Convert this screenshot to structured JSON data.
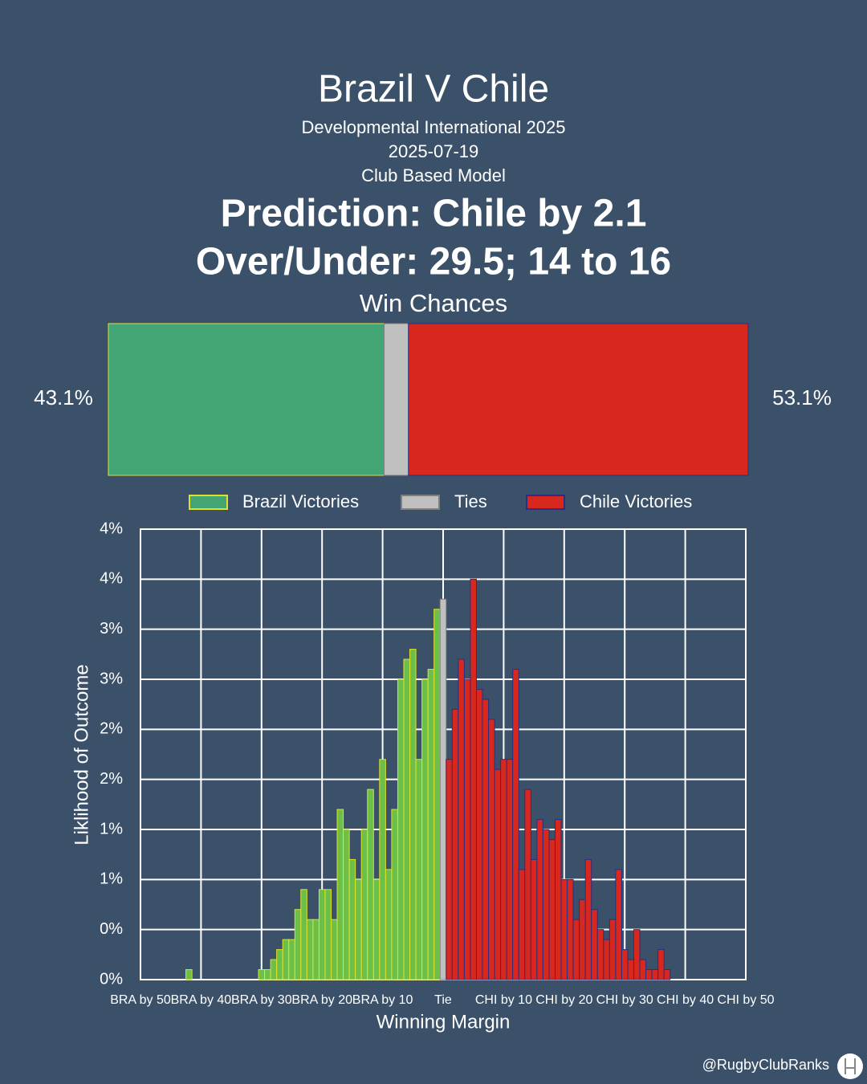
{
  "header": {
    "title": "Brazil V Chile",
    "competition": "Developmental International 2025",
    "date": "2025-07-19",
    "model": "Club Based Model",
    "prediction": "Prediction: Chile by 2.1",
    "over_under": "Over/Under: 29.5; 14 to 16"
  },
  "footer": {
    "handle": "@RugbyClubRanks"
  },
  "chart_data": [
    {
      "type": "stacked-bar",
      "title": "Win Chances",
      "series": [
        {
          "color": "#44a574",
          "edgecolor": "#e0e02a",
          "values": [
            43.1
          ],
          "value_labels": [
            "43.1%"
          ]
        },
        {
          "color": "#c0c0c0",
          "edgecolor": "#808080",
          "values": [
            3.8
          ]
        },
        {
          "color": "#d8281e",
          "edgecolor": "#2a2f80",
          "values": [
            53.1
          ],
          "value_labels": [
            "53.1%"
          ]
        }
      ]
    },
    {
      "type": "histogram",
      "xlabel": "Winning Margin",
      "ylabel": "Liklihood of Outcome",
      "grid": true,
      "xlim": [
        -50,
        50
      ],
      "xticks": [
        {
          "value": -50,
          "label": "BRA by 50"
        },
        {
          "value": -40,
          "label": "BRA by 40"
        },
        {
          "value": -30,
          "label": "BRA by 30"
        },
        {
          "value": -20,
          "label": "BRA by 20"
        },
        {
          "value": -10,
          "label": "BRA by 10"
        },
        {
          "value": 0,
          "label": "Tie"
        },
        {
          "value": 10,
          "label": "CHI by 10"
        },
        {
          "value": 20,
          "label": "CHI by 20"
        },
        {
          "value": 30,
          "label": "CHI by 30"
        },
        {
          "value": 40,
          "label": "CHI by 40"
        },
        {
          "value": 50,
          "label": "CHI by 50"
        }
      ],
      "ylim": [
        0,
        4.5
      ],
      "yticks": [
        {
          "value": 0,
          "label": "0%"
        },
        {
          "value": 0.5,
          "label": "0%"
        },
        {
          "value": 1,
          "label": "1%"
        },
        {
          "value": 1.5,
          "label": "1%"
        },
        {
          "value": 2,
          "label": "2%"
        },
        {
          "value": 2.5,
          "label": "2%"
        },
        {
          "value": 3,
          "label": "3%"
        },
        {
          "value": 3.5,
          "label": "3%"
        },
        {
          "value": 4,
          "label": "4%"
        },
        {
          "value": 4.5,
          "label": "4%"
        }
      ],
      "series": [
        {
          "name": "Brazil Victories",
          "color": "#6cc04a",
          "edgecolor": "#e0e02a",
          "legend_color": "#44a574",
          "x": [
            -42,
            -30,
            -29,
            -28,
            -27,
            -26,
            -25,
            -24,
            -23,
            -22,
            -21,
            -20,
            -19,
            -18,
            -17,
            -16,
            -15,
            -14,
            -13,
            -12,
            -11,
            -10,
            -9,
            -8,
            -7,
            -6,
            -5,
            -4,
            -3,
            -2,
            -1
          ],
          "values": [
            0.1,
            0.1,
            0.1,
            0.2,
            0.3,
            0.4,
            0.4,
            0.7,
            0.9,
            0.6,
            0.6,
            0.9,
            0.9,
            0.6,
            1.7,
            1.5,
            1.2,
            1.0,
            1.5,
            1.9,
            1.0,
            2.2,
            1.1,
            1.7,
            3.0,
            3.2,
            3.3,
            2.2,
            3.0,
            3.1,
            3.7
          ]
        },
        {
          "name": "Ties",
          "color": "#c0c0c0",
          "edgecolor": "#808080",
          "legend_color": "#c0c0c0",
          "x": [
            0
          ],
          "values": [
            3.8
          ]
        },
        {
          "name": "Chile Victories",
          "color": "#d8281e",
          "edgecolor": "#2a2f80",
          "legend_color": "#d8281e",
          "x": [
            1,
            2,
            3,
            4,
            5,
            6,
            7,
            8,
            9,
            10,
            11,
            12,
            13,
            14,
            15,
            16,
            17,
            18,
            19,
            20,
            21,
            22,
            23,
            24,
            25,
            26,
            27,
            28,
            29,
            30,
            31,
            32,
            33,
            34,
            35,
            36,
            37
          ],
          "values": [
            2.2,
            2.7,
            3.2,
            3.0,
            4.0,
            2.9,
            2.8,
            2.6,
            2.1,
            2.2,
            2.2,
            3.1,
            1.1,
            1.9,
            1.2,
            1.6,
            1.5,
            1.4,
            1.6,
            1.0,
            1.0,
            0.6,
            0.8,
            1.2,
            0.7,
            0.5,
            0.4,
            0.6,
            1.1,
            0.3,
            0.2,
            0.5,
            0.2,
            0.1,
            0.1,
            0.3,
            0.1
          ]
        }
      ]
    }
  ]
}
